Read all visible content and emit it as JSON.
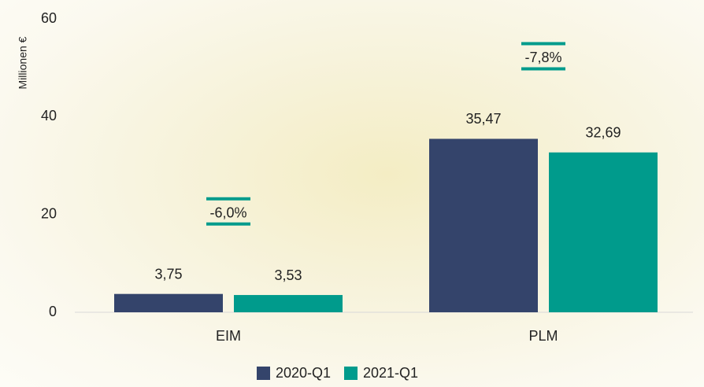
{
  "chart_data": {
    "type": "bar",
    "y_axis_label": "Millionen €",
    "categories": [
      "EIM",
      "PLM"
    ],
    "series": [
      {
        "name": "2020-Q1",
        "color": "#34446b",
        "values": [
          3.75,
          35.47
        ],
        "value_labels": [
          "3,75",
          "35,47"
        ]
      },
      {
        "name": "2021-Q1",
        "color": "#009b8c",
        "values": [
          3.53,
          32.69
        ],
        "value_labels": [
          "3,53",
          "32,69"
        ]
      }
    ],
    "annotations": [
      "-6,0%",
      "-7,8%"
    ],
    "ylim": [
      0,
      60
    ],
    "yticks": [
      0,
      20,
      40,
      60
    ],
    "grid": false,
    "legend": "bottom"
  }
}
